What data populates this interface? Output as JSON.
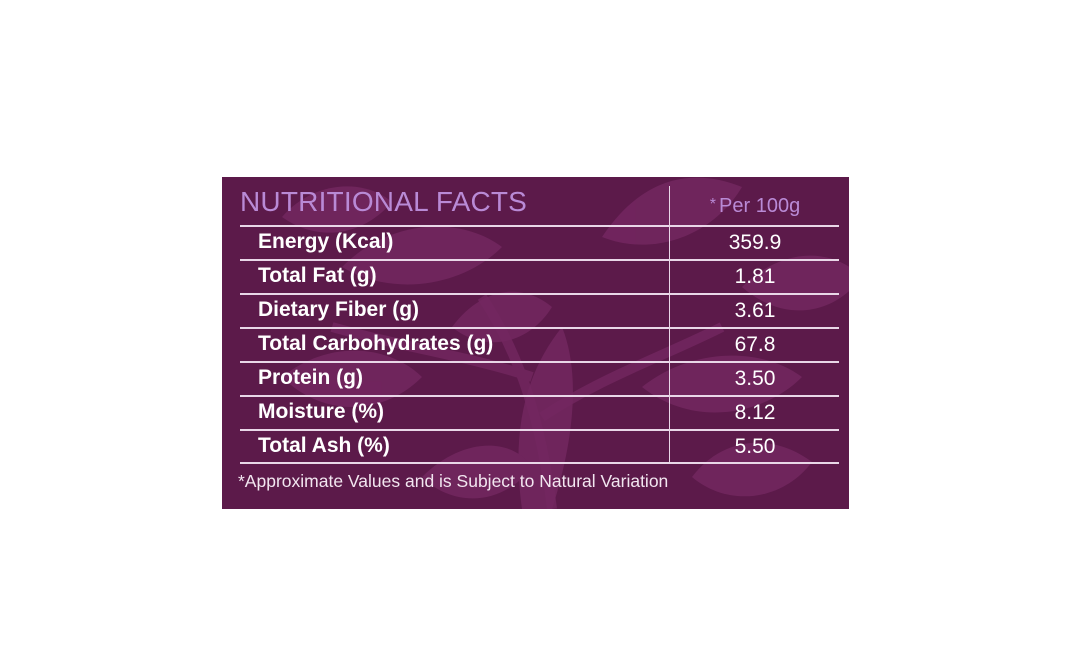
{
  "table": {
    "title": "NUTRITIONAL FACTS",
    "per_star": "*",
    "per_label": "Per 100g",
    "rows": [
      {
        "label": "Energy (Kcal)",
        "value": "359.9"
      },
      {
        "label": "Total Fat (g)",
        "value": "1.81"
      },
      {
        "label": "Dietary Fiber (g)",
        "value": "3.61"
      },
      {
        "label": "Total Carbohydrates (g)",
        "value": "67.8"
      },
      {
        "label": "Protein (g)",
        "value": "3.50"
      },
      {
        "label": "Moisture (%)",
        "value": "8.12"
      },
      {
        "label": "Total Ash (%)",
        "value": "5.50"
      }
    ],
    "footnote": "*Approximate Values and is Subject to Natural Variation"
  },
  "colors": {
    "background": "#5c1a4a",
    "leaf": "#7a2a62",
    "heading": "#b98ad6",
    "text": "#ffffff",
    "lines": "#e9d7e8"
  }
}
